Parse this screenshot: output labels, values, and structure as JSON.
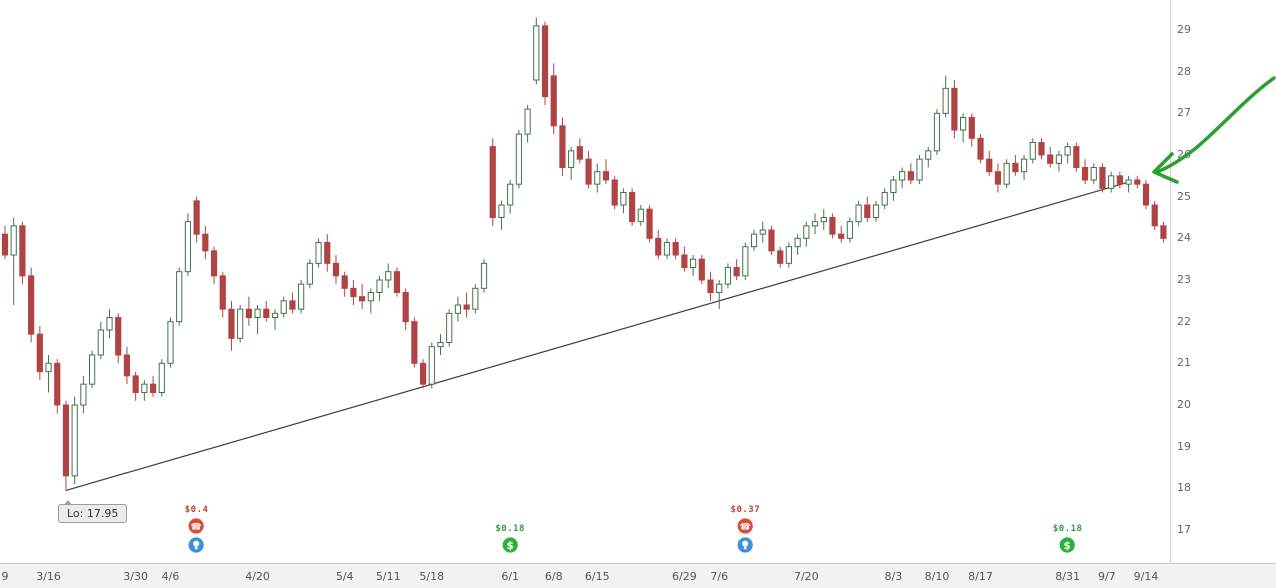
{
  "chart_data": {
    "type": "candlestick",
    "y_axis": {
      "ticks": [
        29,
        28,
        27,
        26,
        25,
        24,
        23,
        22,
        21,
        20,
        19,
        18,
        17
      ],
      "min": 17,
      "max": 29
    },
    "x_labels": [
      {
        "text": "9",
        "i": 0
      },
      {
        "text": "3/16",
        "i": 5
      },
      {
        "text": "3/30",
        "i": 15
      },
      {
        "text": "4/6",
        "i": 19
      },
      {
        "text": "4/20",
        "i": 29
      },
      {
        "text": "5/4",
        "i": 39
      },
      {
        "text": "5/11",
        "i": 44
      },
      {
        "text": "5/18",
        "i": 49
      },
      {
        "text": "6/1",
        "i": 58
      },
      {
        "text": "6/8",
        "i": 63
      },
      {
        "text": "6/15",
        "i": 68
      },
      {
        "text": "6/29",
        "i": 78
      },
      {
        "text": "7/6",
        "i": 82
      },
      {
        "text": "7/20",
        "i": 92
      },
      {
        "text": "8/3",
        "i": 102
      },
      {
        "text": "8/10",
        "i": 107
      },
      {
        "text": "8/17",
        "i": 112
      },
      {
        "text": "8/31",
        "i": 122
      },
      {
        "text": "9/7",
        "i": 126.5
      },
      {
        "text": "9/14",
        "i": 131
      }
    ],
    "columns": [
      "date",
      "open",
      "high",
      "low",
      "close"
    ],
    "candles": [
      [
        "3/9",
        24.1,
        24.3,
        23.5,
        23.6
      ],
      [
        "3/10",
        23.6,
        24.5,
        22.4,
        24.3
      ],
      [
        "3/11",
        24.3,
        24.4,
        22.9,
        23.1
      ],
      [
        "3/12",
        23.1,
        23.3,
        21.5,
        21.7
      ],
      [
        "3/13",
        21.7,
        21.9,
        20.6,
        20.8
      ],
      [
        "3/16",
        20.8,
        21.2,
        20.3,
        21.0
      ],
      [
        "3/17",
        21.0,
        21.1,
        19.8,
        20.0
      ],
      [
        "3/18",
        20.0,
        20.1,
        17.95,
        18.3
      ],
      [
        "3/19",
        18.3,
        20.2,
        18.1,
        20.0
      ],
      [
        "3/20",
        20.0,
        20.7,
        19.8,
        20.5
      ],
      [
        "3/23",
        20.5,
        21.3,
        20.4,
        21.2
      ],
      [
        "3/24",
        21.2,
        22.0,
        21.1,
        21.8
      ],
      [
        "3/25",
        21.8,
        22.3,
        21.6,
        22.1
      ],
      [
        "3/26",
        22.1,
        22.2,
        21.0,
        21.2
      ],
      [
        "3/27",
        21.2,
        21.4,
        20.5,
        20.7
      ],
      [
        "3/30",
        20.7,
        20.8,
        20.1,
        20.3
      ],
      [
        "3/31",
        20.3,
        20.6,
        20.1,
        20.5
      ],
      [
        "4/1",
        20.5,
        20.7,
        20.2,
        20.3
      ],
      [
        "4/2",
        20.3,
        21.1,
        20.2,
        21.0
      ],
      [
        "4/6",
        21.0,
        22.1,
        20.9,
        22.0
      ],
      [
        "4/7",
        22.0,
        23.3,
        21.9,
        23.2
      ],
      [
        "4/8",
        23.2,
        24.6,
        23.1,
        24.4
      ],
      [
        "4/9",
        24.9,
        25.0,
        23.9,
        24.1
      ],
      [
        "4/10",
        24.1,
        24.3,
        23.5,
        23.7
      ],
      [
        "4/13",
        23.7,
        23.8,
        22.9,
        23.1
      ],
      [
        "4/14",
        23.1,
        23.2,
        22.1,
        22.3
      ],
      [
        "4/15",
        22.3,
        22.5,
        21.3,
        21.6
      ],
      [
        "4/16",
        21.6,
        22.4,
        21.5,
        22.3
      ],
      [
        "4/17",
        22.3,
        22.6,
        21.9,
        22.1
      ],
      [
        "4/20",
        22.1,
        22.4,
        21.7,
        22.3
      ],
      [
        "4/21",
        22.3,
        22.5,
        22.0,
        22.1
      ],
      [
        "4/22",
        22.1,
        22.3,
        21.8,
        22.2
      ],
      [
        "4/23",
        22.2,
        22.6,
        22.1,
        22.5
      ],
      [
        "4/24",
        22.5,
        22.7,
        22.2,
        22.3
      ],
      [
        "4/27",
        22.3,
        23.0,
        22.2,
        22.9
      ],
      [
        "4/28",
        22.9,
        23.5,
        22.8,
        23.4
      ],
      [
        "4/29",
        23.4,
        24.0,
        23.3,
        23.9
      ],
      [
        "4/30",
        23.9,
        24.1,
        23.2,
        23.4
      ],
      [
        "5/1",
        23.4,
        23.6,
        22.9,
        23.1
      ],
      [
        "5/4",
        23.1,
        23.2,
        22.6,
        22.8
      ],
      [
        "5/5",
        22.8,
        23.0,
        22.4,
        22.6
      ],
      [
        "5/6",
        22.6,
        22.9,
        22.3,
        22.5
      ],
      [
        "5/7",
        22.5,
        22.8,
        22.2,
        22.7
      ],
      [
        "5/8",
        22.7,
        23.1,
        22.5,
        23.0
      ],
      [
        "5/11",
        23.0,
        23.4,
        22.8,
        23.2
      ],
      [
        "5/12",
        23.2,
        23.3,
        22.6,
        22.7
      ],
      [
        "5/13",
        22.7,
        22.8,
        21.8,
        22.0
      ],
      [
        "5/14",
        22.0,
        22.1,
        20.9,
        21.0
      ],
      [
        "5/15",
        21.0,
        21.1,
        20.4,
        20.5
      ],
      [
        "5/18",
        20.5,
        21.5,
        20.4,
        21.4
      ],
      [
        "5/19",
        21.4,
        21.7,
        21.2,
        21.5
      ],
      [
        "5/20",
        21.5,
        22.3,
        21.4,
        22.2
      ],
      [
        "5/21",
        22.2,
        22.6,
        22.0,
        22.4
      ],
      [
        "5/22",
        22.4,
        22.7,
        22.1,
        22.3
      ],
      [
        "5/26",
        22.3,
        22.9,
        22.2,
        22.8
      ],
      [
        "5/27",
        22.8,
        23.5,
        22.7,
        23.4
      ],
      [
        "5/28",
        26.2,
        26.4,
        24.3,
        24.5
      ],
      [
        "5/29",
        24.5,
        24.9,
        24.2,
        24.8
      ],
      [
        "6/1",
        24.8,
        25.4,
        24.6,
        25.3
      ],
      [
        "6/2",
        25.3,
        26.6,
        25.2,
        26.5
      ],
      [
        "6/3",
        26.5,
        27.2,
        26.3,
        27.1
      ],
      [
        "6/4",
        27.8,
        29.3,
        27.7,
        29.1
      ],
      [
        "6/5",
        29.1,
        29.2,
        27.2,
        27.4
      ],
      [
        "6/8",
        27.9,
        28.2,
        26.5,
        26.7
      ],
      [
        "6/9",
        26.7,
        26.9,
        25.5,
        25.7
      ],
      [
        "6/10",
        25.7,
        26.2,
        25.4,
        26.1
      ],
      [
        "6/11",
        26.2,
        26.4,
        25.8,
        25.9
      ],
      [
        "6/12",
        25.9,
        26.1,
        25.2,
        25.3
      ],
      [
        "6/15",
        25.3,
        25.8,
        25.1,
        25.6
      ],
      [
        "6/16",
        25.6,
        25.9,
        25.3,
        25.4
      ],
      [
        "6/17",
        25.4,
        25.5,
        24.7,
        24.8
      ],
      [
        "6/18",
        24.8,
        25.2,
        24.6,
        25.1
      ],
      [
        "6/19",
        25.1,
        25.2,
        24.3,
        24.4
      ],
      [
        "6/22",
        24.4,
        24.8,
        24.3,
        24.7
      ],
      [
        "6/23",
        24.7,
        24.8,
        23.9,
        24.0
      ],
      [
        "6/24",
        24.0,
        24.2,
        23.5,
        23.6
      ],
      [
        "6/25",
        23.6,
        24.0,
        23.5,
        23.9
      ],
      [
        "6/26",
        23.9,
        24.0,
        23.5,
        23.6
      ],
      [
        "6/29",
        23.6,
        23.8,
        23.2,
        23.3
      ],
      [
        "6/30",
        23.3,
        23.6,
        23.1,
        23.5
      ],
      [
        "7/1",
        23.5,
        23.6,
        22.9,
        23.0
      ],
      [
        "7/2",
        23.0,
        23.2,
        22.5,
        22.7
      ],
      [
        "7/6",
        22.7,
        23.0,
        22.3,
        22.9
      ],
      [
        "7/7",
        22.9,
        23.4,
        22.8,
        23.3
      ],
      [
        "7/8",
        23.3,
        23.5,
        23.0,
        23.1
      ],
      [
        "7/9",
        23.1,
        23.9,
        23.0,
        23.8
      ],
      [
        "7/10",
        23.8,
        24.2,
        23.7,
        24.1
      ],
      [
        "7/13",
        24.1,
        24.4,
        23.9,
        24.2
      ],
      [
        "7/14",
        24.2,
        24.3,
        23.6,
        23.7
      ],
      [
        "7/15",
        23.7,
        23.8,
        23.3,
        23.4
      ],
      [
        "7/16",
        23.4,
        23.9,
        23.3,
        23.8
      ],
      [
        "7/17",
        23.8,
        24.1,
        23.6,
        24.0
      ],
      [
        "7/20",
        24.0,
        24.4,
        23.8,
        24.3
      ],
      [
        "7/21",
        24.3,
        24.6,
        24.1,
        24.4
      ],
      [
        "7/22",
        24.4,
        24.7,
        24.2,
        24.5
      ],
      [
        "7/23",
        24.5,
        24.6,
        24.0,
        24.1
      ],
      [
        "7/24",
        24.1,
        24.3,
        23.9,
        24.0
      ],
      [
        "7/27",
        24.0,
        24.5,
        23.9,
        24.4
      ],
      [
        "7/28",
        24.4,
        24.9,
        24.3,
        24.8
      ],
      [
        "7/29",
        24.8,
        25.0,
        24.4,
        24.5
      ],
      [
        "7/30",
        24.5,
        24.9,
        24.4,
        24.8
      ],
      [
        "7/31",
        24.8,
        25.2,
        24.7,
        25.1
      ],
      [
        "8/3",
        25.1,
        25.5,
        24.9,
        25.4
      ],
      [
        "8/4",
        25.4,
        25.7,
        25.2,
        25.6
      ],
      [
        "8/5",
        25.6,
        25.8,
        25.3,
        25.4
      ],
      [
        "8/6",
        25.4,
        26.0,
        25.3,
        25.9
      ],
      [
        "8/7",
        25.9,
        26.2,
        25.7,
        26.1
      ],
      [
        "8/10",
        26.1,
        27.1,
        26.0,
        27.0
      ],
      [
        "8/11",
        27.0,
        27.9,
        26.9,
        27.6
      ],
      [
        "8/12",
        27.6,
        27.8,
        26.4,
        26.6
      ],
      [
        "8/13",
        26.6,
        27.0,
        26.3,
        26.9
      ],
      [
        "8/14",
        26.9,
        27.0,
        26.2,
        26.4
      ],
      [
        "8/17",
        26.4,
        26.5,
        25.8,
        25.9
      ],
      [
        "8/18",
        25.9,
        26.1,
        25.5,
        25.6
      ],
      [
        "8/19",
        25.6,
        25.8,
        25.1,
        25.3
      ],
      [
        "8/20",
        25.3,
        25.9,
        25.2,
        25.8
      ],
      [
        "8/21",
        25.8,
        26.0,
        25.5,
        25.6
      ],
      [
        "8/24",
        25.6,
        26.0,
        25.4,
        25.9
      ],
      [
        "8/25",
        25.9,
        26.4,
        25.8,
        26.3
      ],
      [
        "8/26",
        26.3,
        26.4,
        25.9,
        26.0
      ],
      [
        "8/27",
        26.0,
        26.2,
        25.7,
        25.8
      ],
      [
        "8/28",
        25.8,
        26.1,
        25.6,
        26.0
      ],
      [
        "8/31",
        26.0,
        26.3,
        25.8,
        26.2
      ],
      [
        "9/1",
        26.2,
        26.3,
        25.6,
        25.7
      ],
      [
        "9/2",
        25.7,
        25.9,
        25.3,
        25.4
      ],
      [
        "9/3",
        25.4,
        25.8,
        25.3,
        25.7
      ],
      [
        "9/4",
        25.7,
        25.8,
        25.1,
        25.2
      ],
      [
        "9/8",
        25.2,
        25.6,
        25.1,
        25.5
      ],
      [
        "9/9",
        25.5,
        25.6,
        25.2,
        25.3
      ],
      [
        "9/10",
        25.3,
        25.5,
        25.1,
        25.4
      ],
      [
        "9/11",
        25.4,
        25.5,
        25.2,
        25.3
      ],
      [
        "9/14",
        25.3,
        25.4,
        24.7,
        24.8
      ],
      [
        "9/15",
        24.8,
        24.9,
        24.2,
        24.3
      ],
      [
        "9/16",
        24.3,
        24.4,
        23.9,
        24.0
      ]
    ],
    "trendline": {
      "from": {
        "i": 7,
        "price": 17.95
      },
      "to": {
        "i": 129,
        "price": 25.35
      }
    },
    "low_callout": {
      "text": "Lo: 17.95",
      "i": 7,
      "price": 17.95
    },
    "events": [
      {
        "date": "4/9",
        "i": 22,
        "amount": "$0.4",
        "amount_color": "#c0452f",
        "icons": [
          "announcement",
          "earnings"
        ]
      },
      {
        "date": "6/1",
        "i": 58,
        "amount": "$0.18",
        "amount_color": "#2f9e3f",
        "icons": [
          "dividend"
        ]
      },
      {
        "date": "7/9",
        "i": 85,
        "amount": "$0.37",
        "amount_color": "#c0452f",
        "icons": [
          "announcement",
          "earnings"
        ]
      },
      {
        "date": "8/31",
        "i": 122,
        "amount": "$0.18",
        "amount_color": "#2f9e3f",
        "icons": [
          "dividend"
        ]
      }
    ],
    "annotation_arrow": {
      "description": "hand-drawn green arrow pointing at the latest candles near the trendline",
      "color": "#2e9e2e"
    },
    "colors": {
      "up": "#44724e",
      "up_fill": "#ffffff",
      "down": "#b04444",
      "trendline": "#3c3c3c",
      "axis_text": "#666666",
      "axis_line": "#cccccc",
      "event_red": "#db4c3c",
      "event_blue": "#3f8fdd",
      "event_green": "#2cb03c"
    },
    "legend": null,
    "grid": false
  }
}
